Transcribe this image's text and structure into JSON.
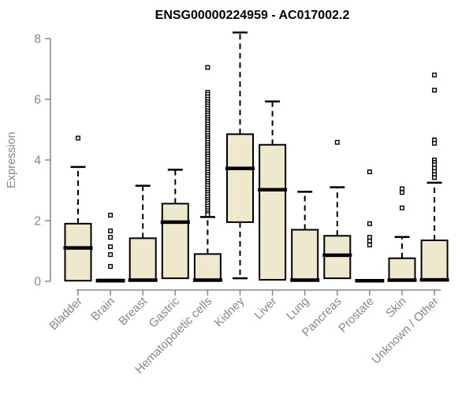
{
  "chart_data": {
    "type": "boxplot",
    "title": "ENSG00000224959 - AC017002.2",
    "ylabel": "Expression",
    "ylim": [
      0,
      8.3
    ],
    "yticks": [
      "0",
      "2",
      "4",
      "6",
      "8"
    ],
    "grid": false,
    "legend": "none",
    "categories": [
      "Bladder",
      "Brain",
      "Breast",
      "Gastric",
      "Hematopoietic cells",
      "Kidney",
      "Liver",
      "Lung",
      "Pancreas",
      "Prostate",
      "Skin",
      "Unknown / Other"
    ],
    "series": [
      {
        "name": "Bladder",
        "low": 0.02,
        "q1": 0.02,
        "median": 1.1,
        "q3": 1.9,
        "high": 3.77,
        "outliers": [
          4.72
        ]
      },
      {
        "name": "Brain",
        "low": 0.0,
        "q1": 0.0,
        "median": 0.02,
        "q3": 0.06,
        "high": 0.06,
        "outliers": [
          2.18,
          1.66,
          1.45,
          1.14,
          0.88,
          0.49
        ]
      },
      {
        "name": "Breast",
        "low": 0.02,
        "q1": 0.02,
        "median": 0.04,
        "q3": 1.42,
        "high": 3.15,
        "outliers": []
      },
      {
        "name": "Gastric",
        "low": 0.1,
        "q1": 0.1,
        "median": 1.95,
        "q3": 2.56,
        "high": 3.68,
        "outliers": []
      },
      {
        "name": "Hematopoietic cells",
        "low": 0.02,
        "q1": 0.02,
        "median": 0.04,
        "q3": 0.9,
        "high": 2.12,
        "outliers": [
          7.05,
          6.23,
          6.16,
          6.08,
          6.0,
          5.92,
          5.85,
          5.78,
          5.7,
          5.62,
          5.55,
          5.48,
          5.4,
          5.33,
          5.26,
          5.18,
          5.1,
          5.03,
          4.96,
          4.88,
          4.8,
          4.73,
          4.66,
          4.58,
          4.5,
          4.43,
          4.36,
          4.28,
          4.2,
          4.13,
          4.06,
          3.98,
          3.9,
          3.83,
          3.76,
          3.68,
          3.6,
          3.53,
          3.46,
          3.38,
          3.3,
          3.23,
          3.16,
          3.08,
          3.0,
          2.93,
          2.86,
          2.78,
          2.7,
          2.63,
          2.56,
          2.48,
          2.4,
          2.33,
          2.26,
          2.2
        ]
      },
      {
        "name": "Kidney",
        "low": 0.1,
        "q1": 1.95,
        "median": 3.72,
        "q3": 4.85,
        "high": 8.2,
        "outliers": []
      },
      {
        "name": "Liver",
        "low": 0.05,
        "q1": 0.05,
        "median": 3.02,
        "q3": 4.5,
        "high": 5.93,
        "outliers": []
      },
      {
        "name": "Lung",
        "low": 0.02,
        "q1": 0.02,
        "median": 0.04,
        "q3": 1.7,
        "high": 2.95,
        "outliers": []
      },
      {
        "name": "Pancreas",
        "low": 0.1,
        "q1": 0.1,
        "median": 0.86,
        "q3": 1.5,
        "high": 3.1,
        "outliers": [
          4.58
        ]
      },
      {
        "name": "Prostate",
        "low": 0.0,
        "q1": 0.0,
        "median": 0.02,
        "q3": 0.05,
        "high": 0.05,
        "outliers": [
          3.61,
          1.9,
          1.45,
          1.33,
          1.2
        ]
      },
      {
        "name": "Skin",
        "low": 0.02,
        "q1": 0.02,
        "median": 0.04,
        "q3": 0.76,
        "high": 1.46,
        "outliers": [
          3.05,
          2.93,
          2.42
        ]
      },
      {
        "name": "Unknown / Other",
        "low": 0.02,
        "q1": 0.02,
        "median": 0.05,
        "q3": 1.35,
        "high": 3.25,
        "outliers": [
          6.8,
          6.3,
          4.66,
          4.55,
          4.0,
          3.92,
          3.84,
          3.73,
          3.62,
          3.52,
          3.42
        ]
      }
    ],
    "colors": {
      "background": "#ffffff",
      "box_fill": "#EEE8CD",
      "box_border": "#000000",
      "median": "#000000",
      "whisker": "#000000",
      "outlier_fill": "#ffffff",
      "outlier_border": "#000000",
      "axis": "#868686",
      "axis_text": "#868686",
      "title_text": "#000000"
    }
  }
}
